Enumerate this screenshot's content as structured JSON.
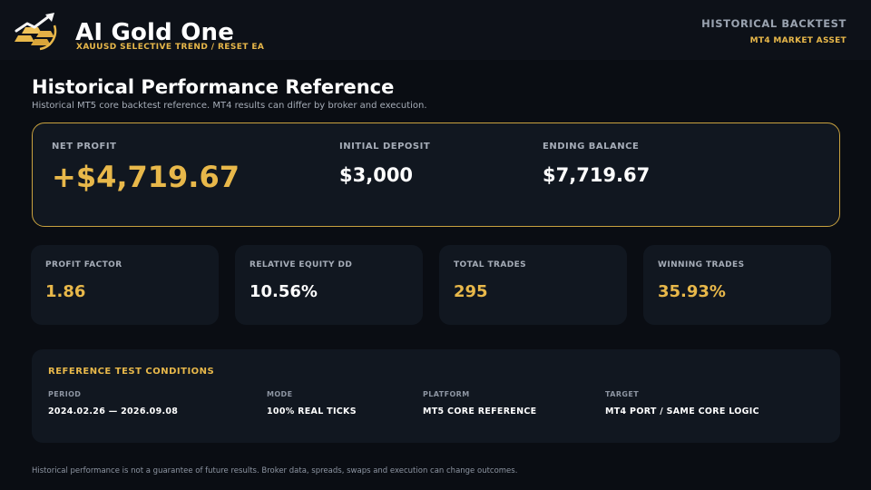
{
  "header": {
    "title": "AI Gold One",
    "subtitle": "XAUUSD SELECTIVE TREND / RESET EA",
    "right_title": "HISTORICAL BACKTEST",
    "right_subtitle": "MT4 MARKET ASSET",
    "logo_icon": "gold-bars-arrow-icon"
  },
  "page": {
    "title": "Historical Performance Reference",
    "subtitle": "Historical MT5 core backtest reference. MT4 results can differ by broker and execution."
  },
  "hero": {
    "net_profit_label": "NET PROFIT",
    "net_profit_value": "+$4,719.67",
    "initial_deposit_label": "INITIAL DEPOSIT",
    "initial_deposit_value": "$3,000",
    "ending_balance_label": "ENDING BALANCE",
    "ending_balance_value": "$7,719.67"
  },
  "stats": [
    {
      "label": "PROFIT FACTOR",
      "value": "1.86"
    },
    {
      "label": "RELATIVE EQUITY DD",
      "value": "10.56%"
    },
    {
      "label": "TOTAL TRADES",
      "value": "295"
    },
    {
      "label": "WINNING TRADES",
      "value": "35.93%"
    }
  ],
  "conditions": {
    "title": "REFERENCE TEST CONDITIONS",
    "items": [
      {
        "label": "PERIOD",
        "value": "2024.02.26 — 2026.09.08"
      },
      {
        "label": "MODE",
        "value": "100% REAL TICKS"
      },
      {
        "label": "PLATFORM",
        "value": "MT5 CORE REFERENCE"
      },
      {
        "label": "TARGET",
        "value": "MT4 PORT / SAME CORE LOGIC"
      }
    ]
  },
  "footer": {
    "disclaimer": "Historical performance is not a guarantee of future results. Broker data, spreads, swaps and execution can change outcomes."
  },
  "colors": {
    "accent_gold": "#e8b84a",
    "background": "#0a0d13",
    "card": "#111720"
  }
}
